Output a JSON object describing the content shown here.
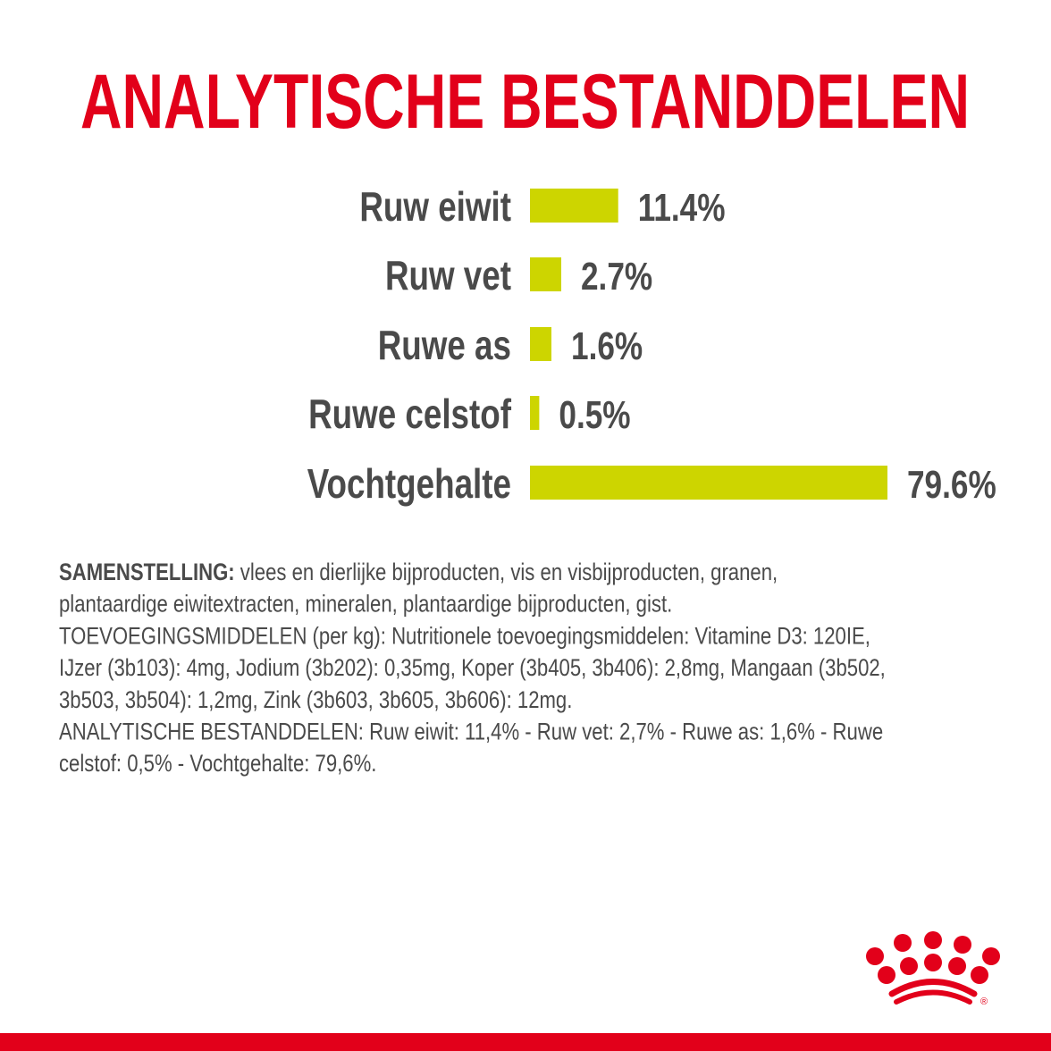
{
  "colors": {
    "title": "#e2001a",
    "bar": "#cdd500",
    "text": "#4a4a4a",
    "brand_red": "#e2001a"
  },
  "title": "ANALYTISCHE BESTANDDELEN",
  "chart_data": {
    "type": "bar",
    "orientation": "horizontal",
    "categories": [
      "Ruw eiwit",
      "Ruw vet",
      "Ruwe as",
      "Ruwe celstof",
      "Vochtgehalte"
    ],
    "values": [
      11.4,
      2.7,
      1.6,
      0.5,
      79.6
    ],
    "value_labels": [
      "11.4%",
      "2.7%",
      "1.6%",
      "0.5%",
      "79.6%"
    ],
    "unit": "%",
    "grid": false,
    "legend": "none"
  },
  "composition": {
    "heading": "SAMENSTELLING:",
    "lines": [
      " vlees en dierlijke bijproducten, vis en visbijproducten, granen,",
      "plantaardige eiwitextracten, mineralen, plantaardige bijproducten, gist.",
      "TOEVOEGINGSMIDDELEN (per kg): Nutritionele toevoegingsmiddelen: Vitamine D3: 120IE,",
      "IJzer (3b103): 4mg, Jodium (3b202): 0,35mg, Koper (3b405, 3b406): 2,8mg, Mangaan (3b502,",
      "3b503, 3b504): 1,2mg, Zink (3b603, 3b605, 3b606): 12mg.",
      "ANALYTISCHE BESTANDDELEN: Ruw eiwit: 11,4% - Ruw vet: 2,7% - Ruwe as: 1,6% - Ruwe",
      "celstof: 0,5% - Vochtgehalte: 79,6%."
    ]
  },
  "logo": {
    "icon": "royal-canin-crown-icon",
    "mark": "®"
  }
}
